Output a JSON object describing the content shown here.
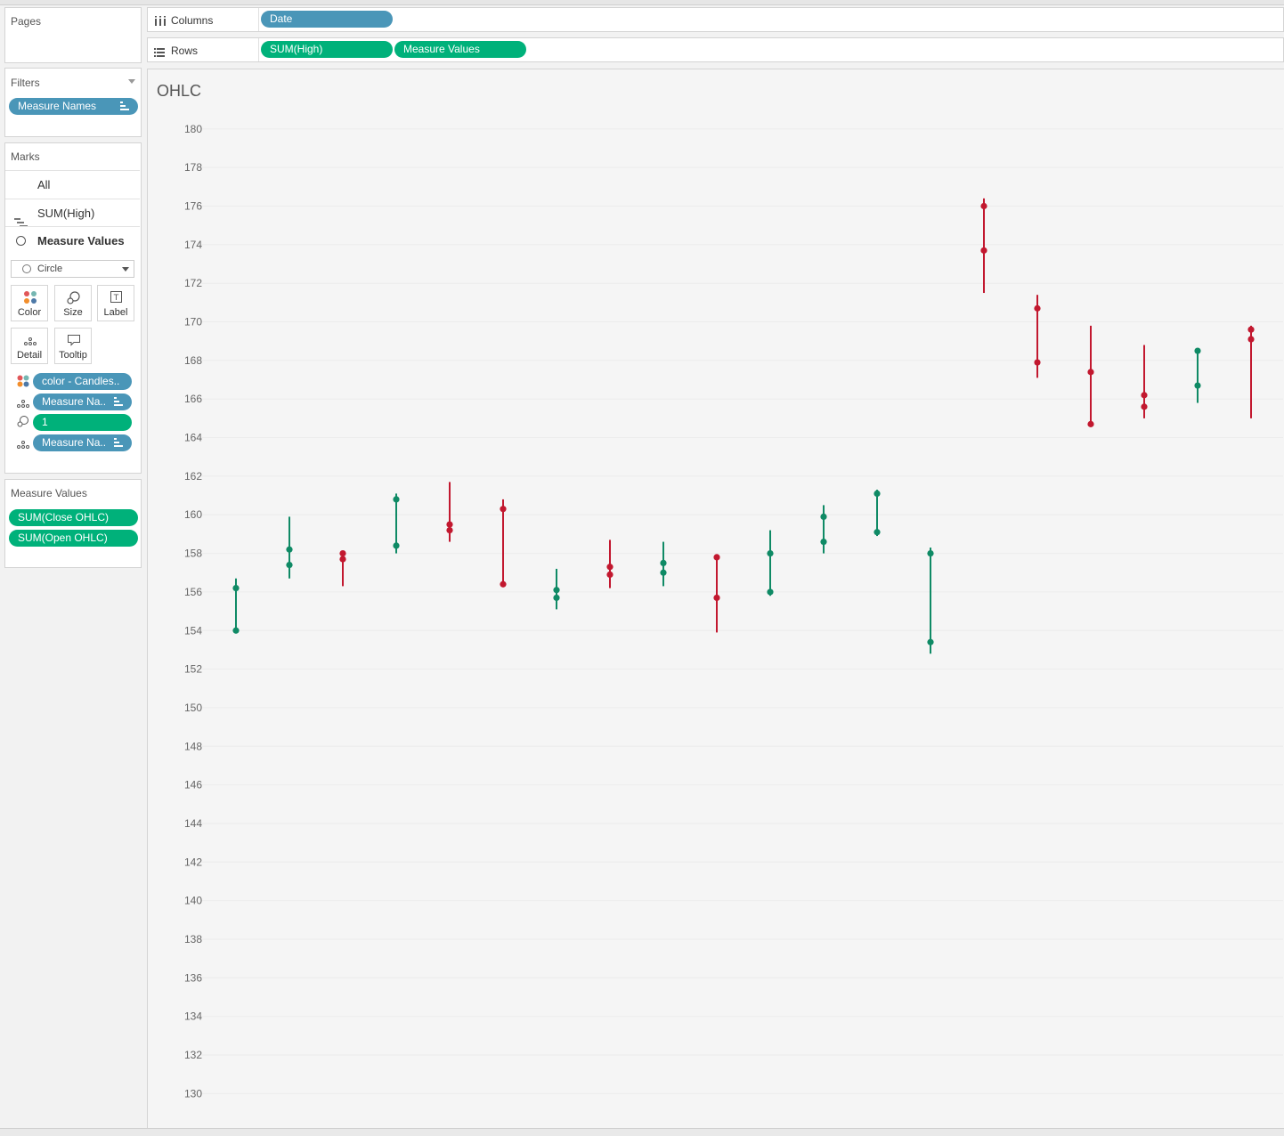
{
  "pages": {
    "title": "Pages"
  },
  "filters": {
    "title": "Filters",
    "pill": "Measure Names"
  },
  "marks": {
    "title": "Marks",
    "layers": {
      "all": "All",
      "high": "SUM(High)",
      "measure_values": "Measure Values"
    },
    "mark_type": "Circle",
    "buttons": {
      "color": "Color",
      "size": "Size",
      "label": "Label",
      "detail": "Detail",
      "tooltip": "Tooltip"
    },
    "fields": {
      "color": "color - Candles..",
      "detail1": "Measure Na..",
      "size": "1",
      "detail2": "Measure Na.."
    }
  },
  "measure_values_card": {
    "title": "Measure Values",
    "items": [
      "SUM(Close OHLC)",
      "SUM(Open OHLC)"
    ]
  },
  "shelves": {
    "columns": {
      "label": "Columns",
      "pills": [
        "Date"
      ]
    },
    "rows": {
      "label": "Rows",
      "pills": [
        "SUM(High)",
        "Measure Values"
      ]
    }
  },
  "colors": {
    "up": "#0f8a65",
    "down": "#c2182f",
    "pill_blue": "#4a96b8",
    "pill_green": "#00b17a"
  },
  "chart_data": {
    "type": "ohlc",
    "title": "OHLC",
    "ylim": [
      129,
      180.5
    ],
    "y_ticks": [
      130,
      132,
      134,
      136,
      138,
      140,
      142,
      144,
      146,
      148,
      150,
      152,
      154,
      156,
      158,
      160,
      162,
      164,
      166,
      168,
      170,
      172,
      174,
      176,
      178,
      180
    ],
    "grid": true,
    "candles": [
      {
        "open": 154.0,
        "close": 156.2,
        "high": 156.7,
        "low": 154.0,
        "dir": "up"
      },
      {
        "open": 157.4,
        "close": 158.2,
        "high": 159.9,
        "low": 156.7,
        "dir": "up"
      },
      {
        "open": 158.0,
        "close": 157.7,
        "high": 158.1,
        "low": 156.3,
        "dir": "down"
      },
      {
        "open": 158.4,
        "close": 160.8,
        "high": 161.1,
        "low": 158.0,
        "dir": "up"
      },
      {
        "open": 159.5,
        "close": 159.2,
        "high": 161.7,
        "low": 158.6,
        "dir": "down"
      },
      {
        "open": 160.3,
        "close": 156.4,
        "high": 160.8,
        "low": 156.4,
        "dir": "down"
      },
      {
        "open": 155.7,
        "close": 156.1,
        "high": 157.2,
        "low": 155.1,
        "dir": "up"
      },
      {
        "open": 157.3,
        "close": 156.9,
        "high": 158.7,
        "low": 156.2,
        "dir": "down"
      },
      {
        "open": 157.0,
        "close": 157.5,
        "high": 158.6,
        "low": 156.3,
        "dir": "up"
      },
      {
        "open": 157.8,
        "close": 155.7,
        "high": 157.8,
        "low": 153.9,
        "dir": "down"
      },
      {
        "open": 156.0,
        "close": 158.0,
        "high": 159.2,
        "low": 155.8,
        "dir": "up"
      },
      {
        "open": 158.6,
        "close": 159.9,
        "high": 160.5,
        "low": 158.0,
        "dir": "up"
      },
      {
        "open": 159.1,
        "close": 161.1,
        "high": 161.3,
        "low": 158.9,
        "dir": "up"
      },
      {
        "open": 153.4,
        "close": 158.0,
        "high": 158.3,
        "low": 152.8,
        "dir": "up"
      },
      {
        "open": 176.0,
        "close": 173.7,
        "high": 176.4,
        "low": 171.5,
        "dir": "down"
      },
      {
        "open": 170.7,
        "close": 167.9,
        "high": 171.4,
        "low": 167.1,
        "dir": "down"
      },
      {
        "open": 167.4,
        "close": 164.7,
        "high": 169.8,
        "low": 164.7,
        "dir": "down"
      },
      {
        "open": 166.2,
        "close": 165.6,
        "high": 168.8,
        "low": 165.0,
        "dir": "down"
      },
      {
        "open": 166.7,
        "close": 168.5,
        "high": 168.6,
        "low": 165.8,
        "dir": "up"
      },
      {
        "open": 169.6,
        "close": 169.1,
        "high": 169.8,
        "low": 165.0,
        "dir": "down"
      }
    ]
  }
}
